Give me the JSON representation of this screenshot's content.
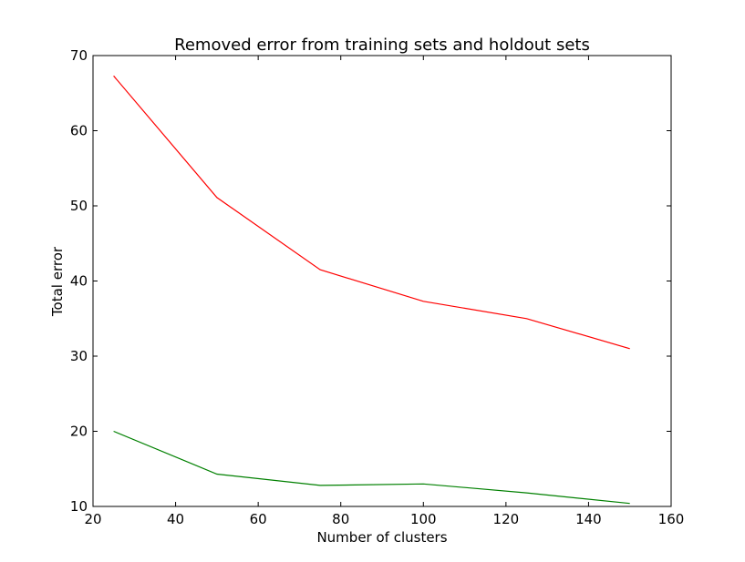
{
  "chart_data": {
    "type": "line",
    "title": "Removed error from training sets and holdout sets",
    "xlabel": "Number of clusters",
    "ylabel": "Total error",
    "xlim": [
      20,
      160
    ],
    "ylim": [
      10,
      70
    ],
    "xticks": [
      20,
      40,
      60,
      80,
      100,
      120,
      140,
      160
    ],
    "yticks": [
      10,
      20,
      30,
      40,
      50,
      60,
      70
    ],
    "grid": false,
    "legend": "none",
    "x": [
      25,
      50,
      75,
      100,
      125,
      150
    ],
    "series": [
      {
        "color": "#ff0000",
        "values": [
          67.3,
          51.1,
          41.5,
          37.3,
          35.0,
          31.0
        ]
      },
      {
        "color": "#008000",
        "values": [
          20.0,
          14.3,
          12.8,
          13.0,
          11.8,
          10.4
        ]
      }
    ]
  }
}
